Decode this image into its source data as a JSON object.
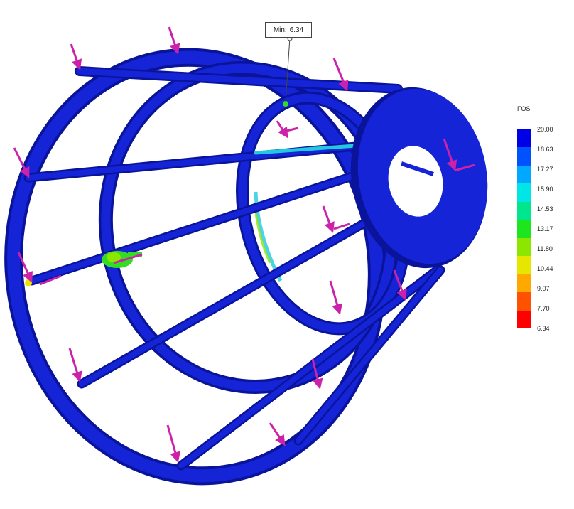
{
  "min_label": {
    "prefix": "Min:",
    "value": "6.34"
  },
  "legend": {
    "title": "FOS",
    "ticks": [
      "20.00",
      "18.63",
      "17.27",
      "15.90",
      "14.53",
      "13.17",
      "11.80",
      "10.44",
      "9.07",
      "7.70",
      "6.34"
    ],
    "colors": [
      "#0000e6",
      "#0052ff",
      "#00a8ff",
      "#00e6e6",
      "#00e68c",
      "#1ee61e",
      "#8ce600",
      "#e6e600",
      "#ffa800",
      "#ff5200",
      "#ff0000"
    ]
  },
  "model": {
    "frame_color": "#0f1ecc",
    "frame_dark": "#0a149a",
    "load_arrow_color": "#cc22aa",
    "hotspot_green": "#33dd22"
  }
}
